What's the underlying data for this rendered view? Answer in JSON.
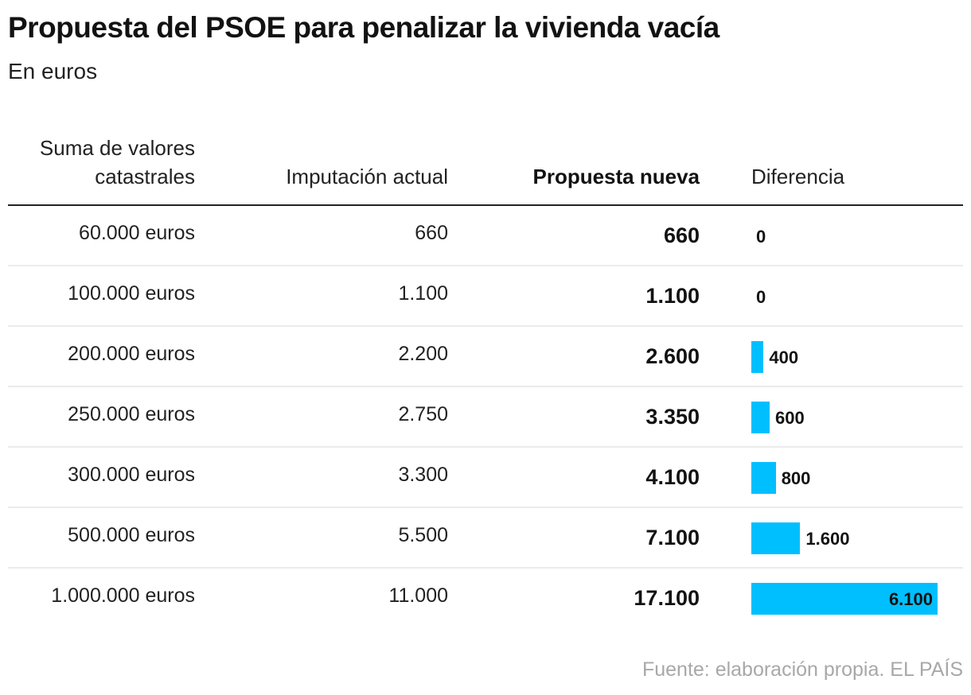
{
  "title": "Propuesta del PSOE para penalizar la vivienda vacía",
  "subtitle": "En euros",
  "source": "Fuente: elaboración propia. EL PAÍS",
  "chart_data": {
    "type": "table",
    "bar_color": "#00bfff",
    "headers": [
      "Suma de valores catastrales",
      "Imputación actual",
      "Propuesta nueva",
      "Diferencia"
    ],
    "rows": [
      {
        "valor": "60.000 euros",
        "actual": "660",
        "nueva": "660",
        "diferencia_label": "0",
        "diferencia": 0
      },
      {
        "valor": "100.000 euros",
        "actual": "1.100",
        "nueva": "1.100",
        "diferencia_label": "0",
        "diferencia": 0
      },
      {
        "valor": "200.000 euros",
        "actual": "2.200",
        "nueva": "2.600",
        "diferencia_label": "400",
        "diferencia": 400
      },
      {
        "valor": "250.000 euros",
        "actual": "2.750",
        "nueva": "3.350",
        "diferencia_label": "600",
        "diferencia": 600
      },
      {
        "valor": "300.000 euros",
        "actual": "3.300",
        "nueva": "4.100",
        "diferencia_label": "800",
        "diferencia": 800
      },
      {
        "valor": "500.000 euros",
        "actual": "5.500",
        "nueva": "7.100",
        "diferencia_label": "1.600",
        "diferencia": 1600
      },
      {
        "valor": "1.000.000 euros",
        "actual": "11.000",
        "nueva": "17.100",
        "diferencia_label": "6.100",
        "diferencia": 6100
      }
    ]
  }
}
